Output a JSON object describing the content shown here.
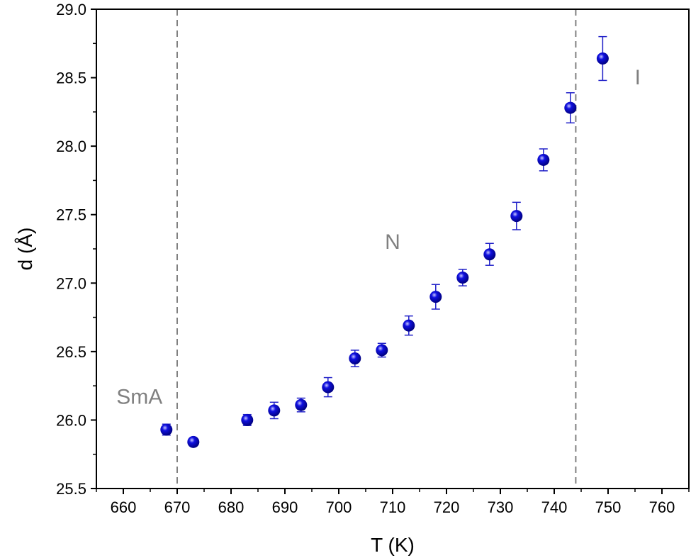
{
  "chart_data": {
    "type": "scatter",
    "xlabel": "T (K)",
    "ylabel": "d (Å)",
    "xlim": [
      655,
      765
    ],
    "ylim": [
      25.5,
      29.0
    ],
    "xticks": [
      660,
      670,
      680,
      690,
      700,
      710,
      720,
      730,
      740,
      750,
      760
    ],
    "xtick_labels": [
      "660",
      "670",
      "680",
      "690",
      "700",
      "710",
      "720",
      "730",
      "740",
      "750",
      "760"
    ],
    "yticks": [
      25.5,
      26.0,
      26.5,
      27.0,
      27.5,
      28.0,
      28.5,
      29.0
    ],
    "ytick_labels": [
      "25.5",
      "26.0",
      "26.5",
      "27.0",
      "27.5",
      "28.0",
      "28.5",
      "29.0"
    ],
    "grid": false,
    "marker_color": "#1010e0",
    "errorbar_color": "#2020c8",
    "series": [
      {
        "x": [
          668,
          673,
          683,
          688,
          693,
          698,
          703,
          708,
          713,
          718,
          723,
          728,
          733,
          738,
          743,
          749
        ],
        "y": [
          25.93,
          25.84,
          26.0,
          26.07,
          26.11,
          26.24,
          26.45,
          26.51,
          26.69,
          26.9,
          27.04,
          27.21,
          27.49,
          27.9,
          28.28,
          28.64
        ],
        "yerr": [
          0.04,
          0.02,
          0.04,
          0.06,
          0.05,
          0.07,
          0.06,
          0.05,
          0.07,
          0.09,
          0.06,
          0.08,
          0.1,
          0.08,
          0.11,
          0.16
        ]
      }
    ],
    "vlines": [
      670,
      744
    ],
    "vline_color": "#808080",
    "annotations": [
      {
        "text": "SmA",
        "x": 663,
        "y": 26.12
      },
      {
        "text": "N",
        "x": 710,
        "y": 27.25
      },
      {
        "text": "I",
        "x": 755.5,
        "y": 28.45
      }
    ],
    "annotation_color": "#808080"
  }
}
